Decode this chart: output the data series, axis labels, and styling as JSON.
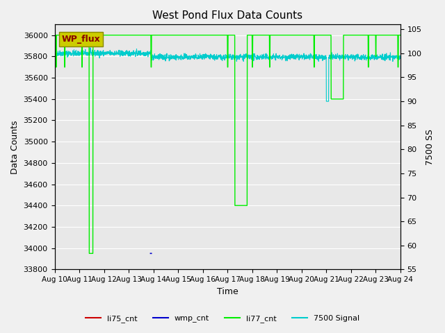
{
  "title": "West Pond Flux Data Counts",
  "xlabel": "Time",
  "ylabel_left": "Data Counts",
  "ylabel_right": "7500 SS",
  "ylim_left": [
    33800,
    36100
  ],
  "ylim_right": [
    55,
    106
  ],
  "xtick_labels": [
    "Aug 10",
    "Aug 11",
    "Aug 12",
    "Aug 13",
    "Aug 14",
    "Aug 15",
    "Aug 16",
    "Aug 17",
    "Aug 18",
    "Aug 19",
    "Aug 20",
    "Aug 21",
    "Aug 22",
    "Aug 23",
    "Aug 24"
  ],
  "legend_entries": [
    "li75_cnt",
    "wmp_cnt",
    "li77_cnt",
    "7500 Signal"
  ],
  "legend_colors": [
    "#cc0000",
    "#0000cc",
    "#00cc00",
    "#00cccc"
  ],
  "wp_flux_box_color": "#cccc00",
  "wp_flux_text_color": "#880000",
  "background_color": "#e8e8e8",
  "grid_color": "#ffffff"
}
